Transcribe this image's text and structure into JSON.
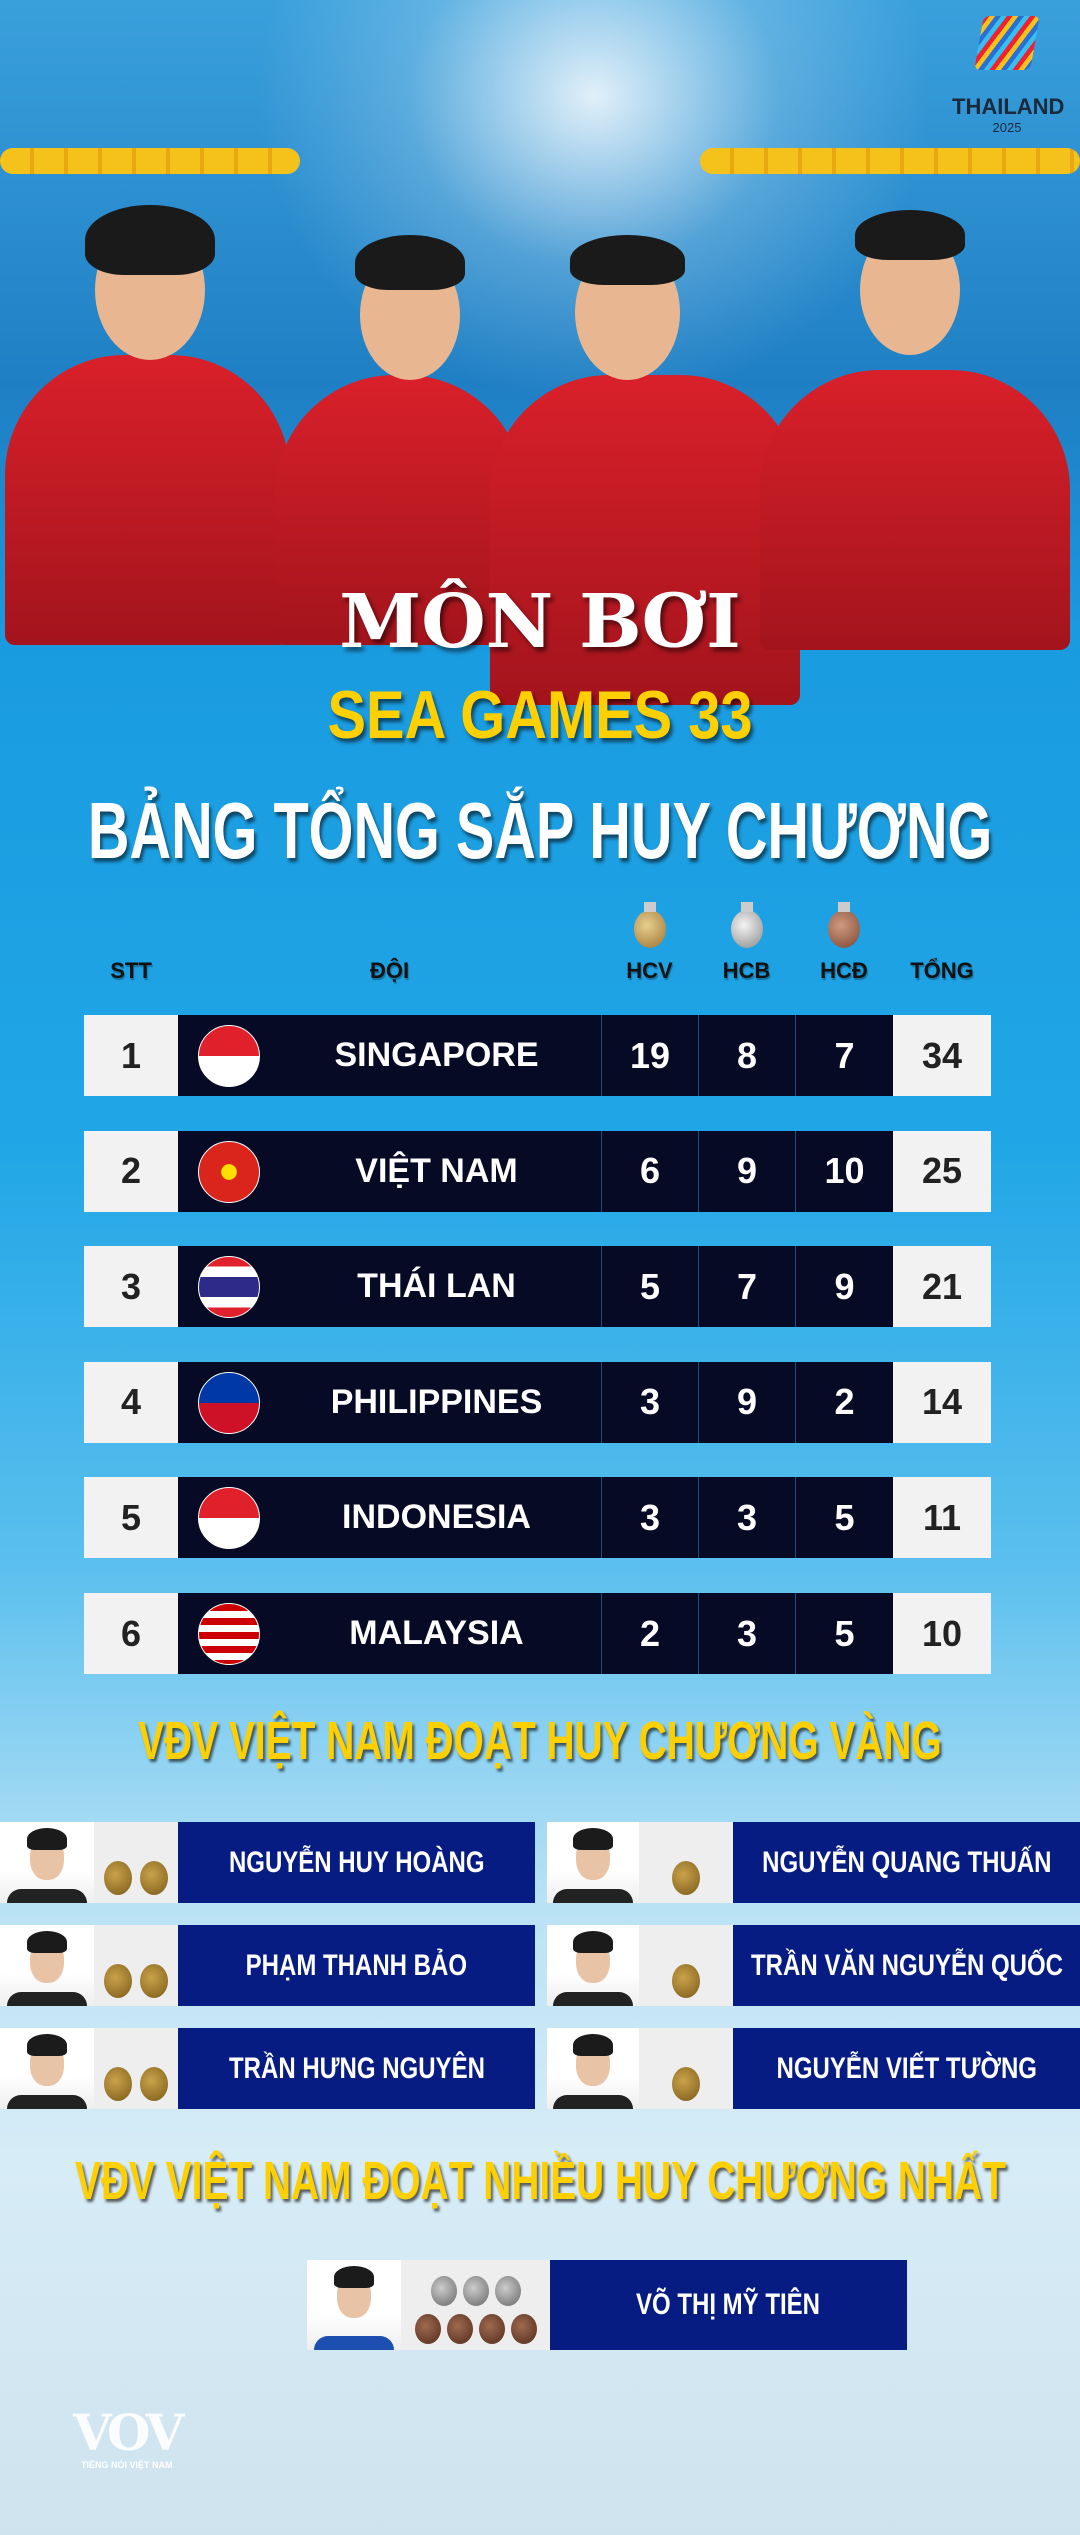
{
  "logo": {
    "event_name": "THAILAND",
    "event_year": "2025"
  },
  "title": {
    "line1": "MÔN BƠI",
    "line2": "SEA GAMES 33",
    "line3": "BẢNG TỔNG SẮP HUY CHƯƠNG"
  },
  "table": {
    "headers": {
      "rank": "STT",
      "team": "ĐỘI",
      "gold": "HCV",
      "silver": "HCB",
      "bronze": "HCĐ",
      "total": "TỔNG"
    },
    "rows": [
      {
        "rank": "1",
        "team": "SINGAPORE",
        "flag": "singapore",
        "gold": "19",
        "silver": "8",
        "bronze": "7",
        "total": "34"
      },
      {
        "rank": "2",
        "team": "VIỆT NAM",
        "flag": "vietnam",
        "gold": "6",
        "silver": "9",
        "bronze": "10",
        "total": "25"
      },
      {
        "rank": "3",
        "team": "THÁI LAN",
        "flag": "thailand",
        "gold": "5",
        "silver": "7",
        "bronze": "9",
        "total": "21"
      },
      {
        "rank": "4",
        "team": "PHILIPPINES",
        "flag": "philippines",
        "gold": "3",
        "silver": "9",
        "bronze": "2",
        "total": "14"
      },
      {
        "rank": "5",
        "team": "INDONESIA",
        "flag": "indonesia",
        "gold": "3",
        "silver": "3",
        "bronze": "5",
        "total": "11"
      },
      {
        "rank": "6",
        "team": "MALAYSIA",
        "flag": "malaysia",
        "gold": "2",
        "silver": "3",
        "bronze": "5",
        "total": "10"
      }
    ]
  },
  "gold_section": {
    "heading": "VĐV VIỆT NAM ĐOẠT HUY CHƯƠNG VÀNG",
    "athletes": [
      {
        "name": "NGUYỄN HUY HOÀNG",
        "gold": 2
      },
      {
        "name": "NGUYỄN QUANG THUẤN",
        "gold": 1
      },
      {
        "name": "PHẠM THANH BẢO",
        "gold": 2
      },
      {
        "name": "TRẦN VĂN NGUYỄN QUỐC",
        "gold": 1
      },
      {
        "name": "TRẦN HƯNG NGUYÊN",
        "gold": 2
      },
      {
        "name": "NGUYỄN VIẾT TƯỜNG",
        "gold": 1
      }
    ]
  },
  "most_section": {
    "heading": "VĐV VIỆT NAM ĐOẠT NHIỀU HUY CHƯƠNG NHẤT",
    "athlete": {
      "name": "VÕ THỊ MỸ TIÊN",
      "silver": 3,
      "bronze": 4
    }
  },
  "footer": {
    "brand": "VOV",
    "tagline": "TIẾNG NÓI VIỆT NAM"
  },
  "colors": {
    "title_yellow": "#ffd000",
    "row_dark": "#060a24",
    "name_box": "#071c82"
  }
}
